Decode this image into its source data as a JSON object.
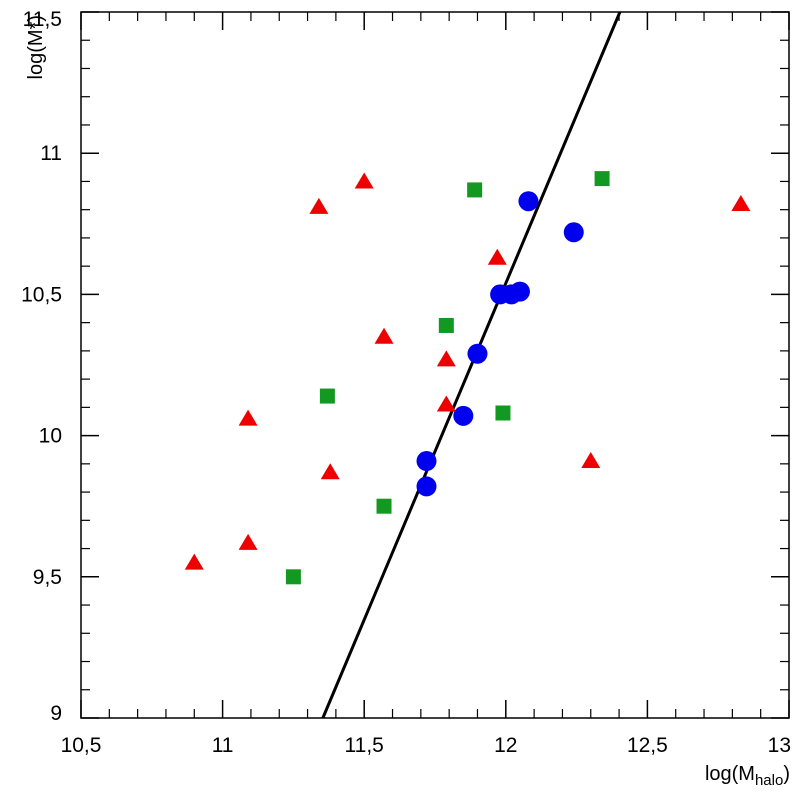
{
  "chart_data": {
    "type": "scatter",
    "title": "",
    "xlabel": {
      "base": "log(M",
      "sub": "halo",
      "close": ")"
    },
    "ylabel": "log(M*)",
    "xlim": [
      10.5,
      13
    ],
    "ylim": [
      9,
      11.5
    ],
    "x_ticks": [
      {
        "value": 10.5,
        "label": "10,5"
      },
      {
        "value": 11,
        "label": "11"
      },
      {
        "value": 11.5,
        "label": "11,5"
      },
      {
        "value": 12,
        "label": "12"
      },
      {
        "value": 12.5,
        "label": "12,5"
      },
      {
        "value": 13,
        "label": "13"
      }
    ],
    "y_ticks": [
      {
        "value": 9,
        "label": "9"
      },
      {
        "value": 9.5,
        "label": "9,5"
      },
      {
        "value": 10,
        "label": "10"
      },
      {
        "value": 10.5,
        "label": "10,5"
      },
      {
        "value": 11,
        "label": "11"
      },
      {
        "value": 11.5,
        "label": "11,5"
      }
    ],
    "minor_step": 0.1,
    "grid": false,
    "series": [
      {
        "marker": "circle",
        "color": "#0000ee",
        "points": [
          [
            11.72,
            9.91
          ],
          [
            11.72,
            9.82
          ],
          [
            11.85,
            10.07
          ],
          [
            11.9,
            10.29
          ],
          [
            11.98,
            10.5
          ],
          [
            12.02,
            10.5
          ],
          [
            12.05,
            10.51
          ],
          [
            12.08,
            10.83
          ],
          [
            12.24,
            10.72
          ]
        ]
      },
      {
        "marker": "square",
        "color": "#119922",
        "points": [
          [
            11.25,
            9.5
          ],
          [
            11.37,
            10.14
          ],
          [
            11.57,
            9.75
          ],
          [
            11.79,
            10.39
          ],
          [
            11.89,
            10.87
          ],
          [
            11.99,
            10.08
          ],
          [
            12.34,
            10.91
          ]
        ]
      },
      {
        "marker": "triangle",
        "color": "#ee0000",
        "points": [
          [
            10.9,
            9.55
          ],
          [
            11.09,
            10.06
          ],
          [
            11.09,
            9.62
          ],
          [
            11.34,
            10.81
          ],
          [
            11.38,
            9.87
          ],
          [
            11.5,
            10.9
          ],
          [
            11.57,
            10.35
          ],
          [
            11.79,
            10.27
          ],
          [
            11.79,
            10.11
          ],
          [
            11.97,
            10.63
          ],
          [
            12.3,
            9.91
          ],
          [
            12.83,
            10.82
          ]
        ]
      }
    ],
    "lines": [
      {
        "color": "#000000",
        "points": [
          [
            11.354,
            9.0
          ],
          [
            12.403,
            11.5
          ]
        ]
      }
    ]
  }
}
